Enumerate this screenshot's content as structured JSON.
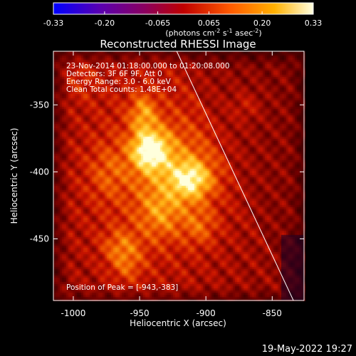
{
  "colorbar": {
    "tick_labels": [
      "-0.33",
      "-0.20",
      "-0.065",
      "0.065",
      "0.20",
      "0.33"
    ],
    "tick_values": [
      -0.33,
      -0.2,
      -0.065,
      0.065,
      0.2,
      0.33
    ],
    "range": [
      -0.33,
      0.33
    ],
    "units_part1": "(photons cm",
    "units_sup1": "-2",
    "units_part2": " s",
    "units_sup2": "-1",
    "units_part3": " asec",
    "units_sup3": "-2",
    "units_part4": ")"
  },
  "image": {
    "title": "Reconstructed RHESSI Image",
    "info_lines": [
      "23-Nov-2014 01:18:00.000 to 01:20:08.000",
      "Detectors: 3F 6F 9F, Att 0",
      "Energy Range: 3.0 - 6.0 keV",
      "Clean     Total counts: 1.48E+04"
    ],
    "peak_label": "Position of Peak = [-943,-383]",
    "peak": {
      "x": -943,
      "y": -383
    },
    "xlabel": "Heliocentric X (arcsec)",
    "ylabel": "Heliocentric Y (arcsec)",
    "x_ticks": [
      "-1000",
      "-950",
      "-900",
      "-850"
    ],
    "x_tick_values": [
      -1000,
      -950,
      -900,
      -850
    ],
    "y_ticks": [
      "-350",
      "-400",
      "-450"
    ],
    "y_tick_values": [
      -350,
      -400,
      -450
    ],
    "xlim": [
      -1015,
      -826
    ],
    "ylim": [
      -496,
      -310
    ],
    "limb_line": [
      [
        -922,
        -310
      ],
      [
        -834,
        -496
      ]
    ],
    "colors": {
      "low": "#000000",
      "mid_low": "#8b0000",
      "mid": "#e83a00",
      "high": "#ffc21a",
      "peak": "#ffffd8",
      "limb": "#ffffff"
    }
  },
  "footer": {
    "timestamp": "19-May-2022 19:27"
  }
}
